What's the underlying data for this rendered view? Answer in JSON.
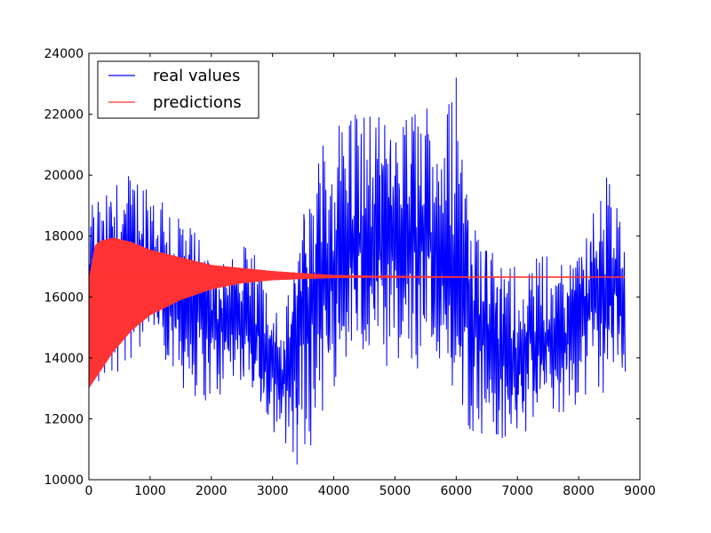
{
  "chart_data": {
    "type": "line",
    "title": "",
    "xlabel": "",
    "ylabel": "",
    "xlim": [
      0,
      9000
    ],
    "ylim": [
      10000,
      24000
    ],
    "grid": false,
    "legend_position": "top-left",
    "x_ticks": [
      0,
      1000,
      2000,
      3000,
      4000,
      5000,
      6000,
      7000,
      8000,
      9000
    ],
    "y_ticks": [
      10000,
      12000,
      14000,
      16000,
      18000,
      20000,
      22000,
      24000
    ],
    "x_tick_labels": [
      "0",
      "1000",
      "2000",
      "3000",
      "4000",
      "5000",
      "6000",
      "7000",
      "8000",
      "9000"
    ],
    "y_tick_labels": [
      "10000",
      "12000",
      "14000",
      "16000",
      "18000",
      "20000",
      "22000",
      "24000"
    ],
    "series": [
      {
        "name": "real values",
        "color": "#0000ff",
        "x_range": [
          0,
          8760
        ],
        "band_envelope": {
          "x": [
            0,
            300,
            600,
            1000,
            1500,
            2000,
            2500,
            3000,
            3200,
            3500,
            3800,
            4200,
            4700,
            5300,
            5800,
            6000,
            6300,
            6800,
            7200,
            7800,
            8200,
            8500,
            8760
          ],
          "high": [
            19500,
            20800,
            20600,
            20000,
            19200,
            18000,
            17800,
            16800,
            15800,
            20000,
            21500,
            22500,
            22500,
            23100,
            22300,
            23200,
            19800,
            17500,
            17400,
            17500,
            19600,
            20500,
            18000
          ],
          "low": [
            12500,
            13000,
            13800,
            13800,
            12700,
            12500,
            12800,
            11300,
            11000,
            10500,
            11800,
            12700,
            12800,
            12700,
            12700,
            11200,
            11400,
            10600,
            11100,
            12000,
            12600,
            12700,
            12900
          ]
        },
        "notable_points": {
          "max": {
            "x": 6000,
            "y": 23200
          },
          "min": {
            "x": 3400,
            "y": 10500
          }
        }
      },
      {
        "name": "predictions",
        "color": "#ff3333",
        "x_range": [
          0,
          8760
        ],
        "center": 16650,
        "band_envelope": {
          "x": [
            0,
            100,
            200,
            400,
            700,
            1000,
            1500,
            2000,
            2500,
            3000,
            3500,
            4000,
            4500,
            5000,
            6000,
            7000,
            8000,
            8760
          ],
          "high": [
            16600,
            17700,
            17850,
            17950,
            17800,
            17550,
            17300,
            17050,
            16950,
            16850,
            16780,
            16720,
            16700,
            16680,
            16670,
            16660,
            16660,
            16660
          ],
          "low": [
            13000,
            13300,
            13600,
            14200,
            14900,
            15400,
            15900,
            16250,
            16450,
            16550,
            16590,
            16620,
            16640,
            16650,
            16655,
            16660,
            16660,
            16660
          ]
        }
      }
    ]
  }
}
